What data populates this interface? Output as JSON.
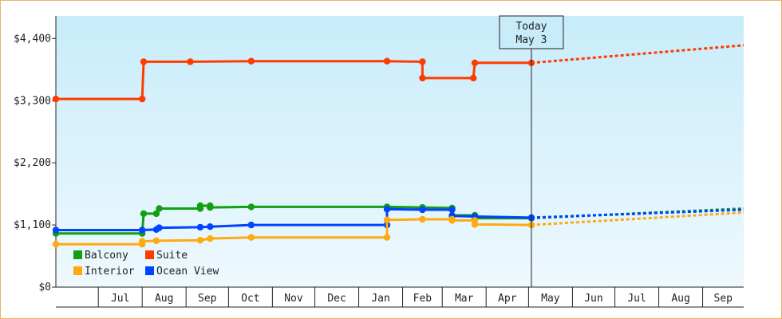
{
  "chart_data": {
    "type": "line",
    "title": "",
    "xlabel": "",
    "ylabel": "",
    "ylim": [
      0,
      4800
    ],
    "y_ticks": [
      0,
      1100,
      2200,
      3300,
      4400
    ],
    "y_tick_labels": [
      "$0",
      "$1,100",
      "$2,200",
      "$3,300",
      "$4,400"
    ],
    "x_start": "2024-06-01",
    "x_end": "2025-09-30",
    "month_labels": [
      "Jul",
      "Aug",
      "Sep",
      "Oct",
      "Nov",
      "Dec",
      "Jan",
      "Feb",
      "Mar",
      "Apr",
      "May",
      "Jun",
      "Jul",
      "Aug",
      "Sep"
    ],
    "today": {
      "line1": "Today",
      "line2": "May 3",
      "date": "2025-05-03"
    },
    "grid": false,
    "background": {
      "top": "#c8ecfa",
      "bottom": "#eef9fe"
    },
    "legend_position": "bottom-left",
    "series": [
      {
        "name": "Suite",
        "color": "#ff3c00",
        "points": [
          [
            "2024-06-01",
            3330
          ],
          [
            "2024-08-01",
            3330
          ],
          [
            "2024-08-02",
            3990
          ],
          [
            "2024-09-04",
            3990
          ],
          [
            "2024-10-17",
            4000
          ],
          [
            "2025-01-21",
            4000
          ],
          [
            "2025-02-15",
            3990
          ],
          [
            "2025-02-15",
            3700
          ],
          [
            "2025-03-23",
            3700
          ],
          [
            "2025-03-24",
            3970
          ],
          [
            "2025-05-03",
            3970
          ]
        ],
        "forecast": [
          [
            "2025-05-03",
            3970
          ],
          [
            "2025-09-30",
            4280
          ]
        ]
      },
      {
        "name": "Balcony",
        "color": "#10a010",
        "points": [
          [
            "2024-06-01",
            950
          ],
          [
            "2024-08-01",
            950
          ],
          [
            "2024-08-02",
            1300
          ],
          [
            "2024-08-11",
            1300
          ],
          [
            "2024-08-13",
            1390
          ],
          [
            "2024-09-11",
            1390
          ],
          [
            "2024-09-11",
            1440
          ],
          [
            "2024-09-18",
            1440
          ],
          [
            "2024-09-18",
            1410
          ],
          [
            "2024-10-17",
            1420
          ],
          [
            "2025-01-21",
            1420
          ],
          [
            "2025-02-15",
            1410
          ],
          [
            "2025-03-08",
            1400
          ],
          [
            "2025-03-08",
            1270
          ],
          [
            "2025-03-24",
            1270
          ],
          [
            "2025-03-24",
            1220
          ],
          [
            "2025-05-03",
            1220
          ]
        ],
        "forecast": [
          [
            "2025-05-03",
            1220
          ],
          [
            "2025-09-30",
            1390
          ]
        ]
      },
      {
        "name": "Ocean View",
        "color": "#0044ff",
        "points": [
          [
            "2024-06-01",
            1010
          ],
          [
            "2024-08-01",
            1010
          ],
          [
            "2024-08-11",
            1020
          ],
          [
            "2024-08-13",
            1050
          ],
          [
            "2024-09-11",
            1060
          ],
          [
            "2024-09-18",
            1070
          ],
          [
            "2024-10-17",
            1100
          ],
          [
            "2025-01-21",
            1100
          ],
          [
            "2025-01-21",
            1380
          ],
          [
            "2025-02-15",
            1370
          ],
          [
            "2025-03-08",
            1370
          ],
          [
            "2025-03-08",
            1260
          ],
          [
            "2025-03-24",
            1250
          ],
          [
            "2025-05-03",
            1230
          ]
        ],
        "forecast": [
          [
            "2025-05-03",
            1230
          ],
          [
            "2025-09-30",
            1370
          ]
        ]
      },
      {
        "name": "Interior",
        "color": "#ffaa10",
        "points": [
          [
            "2024-06-01",
            760
          ],
          [
            "2024-08-01",
            760
          ],
          [
            "2024-08-01",
            810
          ],
          [
            "2024-08-11",
            820
          ],
          [
            "2024-09-11",
            830
          ],
          [
            "2024-09-18",
            860
          ],
          [
            "2024-10-17",
            880
          ],
          [
            "2025-01-21",
            880
          ],
          [
            "2025-01-21",
            1190
          ],
          [
            "2025-02-15",
            1200
          ],
          [
            "2025-03-08",
            1200
          ],
          [
            "2025-03-08",
            1180
          ],
          [
            "2025-03-24",
            1180
          ],
          [
            "2025-03-24",
            1110
          ],
          [
            "2025-05-03",
            1100
          ]
        ],
        "forecast": [
          [
            "2025-05-03",
            1100
          ],
          [
            "2025-09-30",
            1320
          ]
        ]
      }
    ],
    "legend": [
      {
        "name": "Balcony",
        "color": "#10a010"
      },
      {
        "name": "Suite",
        "color": "#ff3c00"
      },
      {
        "name": "Interior",
        "color": "#ffaa10"
      },
      {
        "name": "Ocean View",
        "color": "#0044ff"
      }
    ]
  }
}
